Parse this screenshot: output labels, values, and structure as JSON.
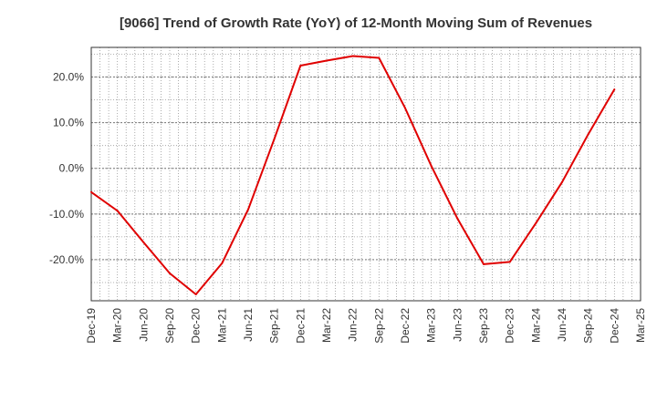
{
  "chart_data": {
    "type": "line",
    "title": "[9066]  Trend of Growth Rate (YoY) of 12-Month Moving Sum of Revenues",
    "xlabel": "",
    "ylabel": "",
    "x_tick_labels": [
      "Dec-19",
      "Mar-20",
      "Jun-20",
      "Sep-20",
      "Dec-20",
      "Mar-21",
      "Jun-21",
      "Sep-21",
      "Dec-21",
      "Mar-22",
      "Jun-22",
      "Sep-22",
      "Dec-22",
      "Mar-23",
      "Jun-23",
      "Sep-23",
      "Dec-23",
      "Mar-24",
      "Jun-24",
      "Sep-24",
      "Dec-24",
      "Mar-25"
    ],
    "y_ticks": [
      -20,
      -10,
      0,
      10,
      20
    ],
    "y_tick_labels": [
      "-20.0%",
      "-10.0%",
      "0.0%",
      "10.0%",
      "20.0%"
    ],
    "ylim": [
      -29,
      26.5
    ],
    "grid": true,
    "series": [
      {
        "name": "",
        "color": "#e00000",
        "x": [
          "Dec-19",
          "Mar-20",
          "Jun-20",
          "Sep-20",
          "Dec-20",
          "Mar-21",
          "Jun-21",
          "Sep-21",
          "Dec-21",
          "Mar-22",
          "Jun-22",
          "Sep-22",
          "Dec-22",
          "Mar-23",
          "Jun-23",
          "Sep-23",
          "Dec-23",
          "Mar-24",
          "Jun-24",
          "Sep-24",
          "Dec-24"
        ],
        "values": [
          -5.2,
          -9.3,
          -16.2,
          -23.0,
          -27.6,
          -20.8,
          -9.0,
          6.5,
          22.5,
          23.6,
          24.6,
          24.2,
          13.2,
          0.5,
          -11.0,
          -21.0,
          -20.5,
          -12.0,
          -3.0,
          7.5,
          17.3
        ]
      }
    ]
  }
}
